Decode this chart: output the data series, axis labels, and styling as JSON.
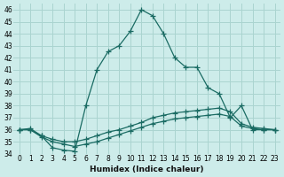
{
  "xlabel": "Humidex (Indice chaleur)",
  "ylabel": "",
  "bg_color": "#cdecea",
  "grid_color": "#aad4d0",
  "line_color": "#1a6b63",
  "xlim": [
    -0.5,
    23.5
  ],
  "ylim": [
    34,
    46.5
  ],
  "yticks": [
    34,
    35,
    36,
    37,
    38,
    39,
    40,
    41,
    42,
    43,
    44,
    45,
    46
  ],
  "xticks": [
    0,
    1,
    2,
    3,
    4,
    5,
    6,
    7,
    8,
    9,
    10,
    11,
    12,
    13,
    14,
    15,
    16,
    17,
    18,
    19,
    20,
    21,
    22,
    23
  ],
  "xtick_labels": [
    "0",
    "1",
    "2",
    "3",
    "4",
    "5",
    "6",
    "7",
    "8",
    "9",
    "10",
    "11",
    "12",
    "13",
    "14",
    "15",
    "16",
    "17",
    "18",
    "19",
    "20",
    "21",
    "22",
    "23"
  ],
  "series1_x": [
    0,
    1,
    2,
    3,
    4,
    5,
    6,
    7,
    8,
    9,
    10,
    11,
    12,
    13,
    14,
    15,
    16,
    17,
    18,
    19,
    20,
    21,
    22,
    23
  ],
  "series1_y": [
    36.0,
    36.1,
    35.5,
    34.5,
    34.3,
    34.2,
    38.0,
    41.0,
    42.5,
    43.0,
    44.2,
    46.0,
    45.5,
    44.0,
    42.0,
    41.2,
    41.2,
    39.5,
    39.0,
    37.0,
    38.0,
    36.0,
    36.0,
    36.0
  ],
  "series2_x": [
    0,
    1,
    2,
    3,
    4,
    5,
    6,
    7,
    8,
    9,
    10,
    11,
    12,
    13,
    14,
    15,
    16,
    17,
    18,
    19,
    20,
    21,
    22,
    23
  ],
  "series2_y": [
    36.0,
    36.0,
    35.5,
    35.2,
    35.0,
    35.0,
    35.2,
    35.5,
    35.8,
    36.0,
    36.3,
    36.6,
    37.0,
    37.2,
    37.4,
    37.5,
    37.6,
    37.7,
    37.8,
    37.5,
    36.5,
    36.2,
    36.1,
    36.0
  ],
  "series3_x": [
    0,
    1,
    2,
    3,
    4,
    5,
    6,
    7,
    8,
    9,
    10,
    11,
    12,
    13,
    14,
    15,
    16,
    17,
    18,
    19,
    20,
    21,
    22,
    23
  ],
  "series3_y": [
    36.0,
    36.0,
    35.4,
    35.0,
    34.8,
    34.6,
    34.8,
    35.0,
    35.3,
    35.6,
    35.9,
    36.2,
    36.5,
    36.7,
    36.9,
    37.0,
    37.1,
    37.2,
    37.3,
    37.1,
    36.3,
    36.1,
    36.0,
    36.0
  ]
}
